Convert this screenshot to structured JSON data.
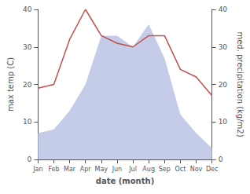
{
  "chart_data": {
    "type": "line",
    "categories": [
      "Jan",
      "Feb",
      "Mar",
      "Apr",
      "May",
      "Jun",
      "Jul",
      "Aug",
      "Sep",
      "Oct",
      "Nov",
      "Dec"
    ],
    "series": [
      {
        "type": "area",
        "color": "#c5cce8",
        "axis": "y2",
        "values": [
          7,
          8,
          13,
          20,
          33,
          33,
          30,
          36,
          27,
          12,
          7,
          3
        ]
      },
      {
        "type": "line",
        "color": "#c0504d",
        "values": [
          19,
          20,
          32,
          40,
          33,
          31,
          30,
          33,
          33,
          24,
          22,
          17
        ]
      }
    ],
    "xlabel": "date (month)",
    "ylabel": "max temp (C)",
    "y2label": "med. precipitation (kg/m2)",
    "ylim": [
      0,
      40
    ],
    "yticks": [
      0,
      10,
      20,
      30,
      40
    ],
    "y2lim": [
      0,
      40
    ],
    "y2ticks": [
      0,
      10,
      20,
      30,
      40
    ],
    "grid": false
  }
}
